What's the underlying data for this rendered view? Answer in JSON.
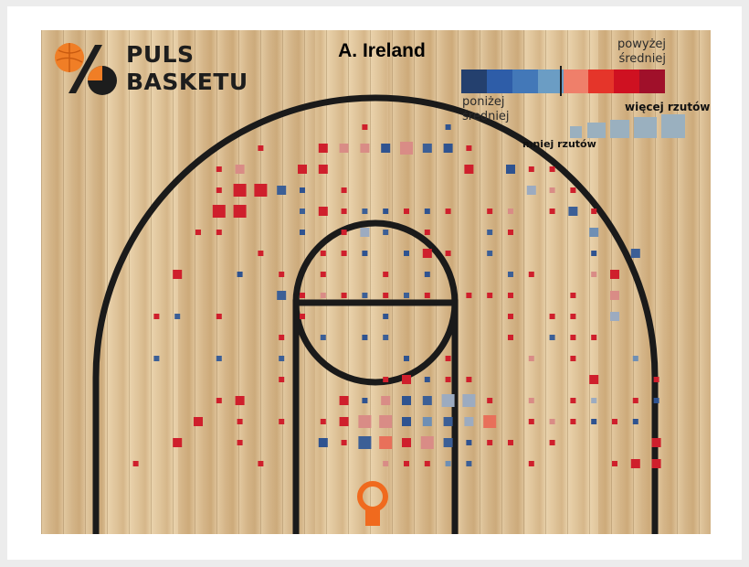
{
  "header": {
    "logo_line1": "PULS",
    "logo_line2": "BASKETU",
    "player_title": "A. Ireland"
  },
  "legend": {
    "above_avg_line1": "powyżej",
    "above_avg_line2": "średniej",
    "below_avg_line1": "poniżej",
    "below_avg_line2": "średniej",
    "more_shots": "więcej rzutów",
    "fewer_shots": "mniej rzutów",
    "color_scale": [
      "#24406e",
      "#2e5da8",
      "#4378b8",
      "#6b9dc4",
      "#ef7f6a",
      "#e5352a",
      "#cf1121",
      "#a0102a"
    ],
    "size_scale_colors": "#9ab0bf"
  },
  "colors": {
    "court_line": "#1a1a1a",
    "rim": "#f06a1e",
    "wood": "#dcbf93"
  },
  "chart_data": {
    "type": "heatmap",
    "title": "A. Ireland",
    "xlabel": "",
    "ylabel": "",
    "grid": false,
    "x_unit": "court grid column (0 = left sideline bin, 27 = right sideline bin)",
    "y_unit": "court grid row (0 = far from basket, 16 = baseline)",
    "value_levels": [
      "-4 = far below average",
      "-1 = slightly below average",
      "+1 = slightly above average",
      "+4 = far above average"
    ],
    "size_levels": "1 = fewest shots, 4 = most shots",
    "points": [
      {
        "x": 13,
        "y": 0,
        "c": 3,
        "s": 1
      },
      {
        "x": 17,
        "y": 0,
        "c": -4,
        "s": 1
      },
      {
        "x": 8,
        "y": 1,
        "c": 3,
        "s": 1
      },
      {
        "x": 11,
        "y": 1,
        "c": 3,
        "s": 2
      },
      {
        "x": 12,
        "y": 1,
        "c": 1,
        "s": 2
      },
      {
        "x": 13,
        "y": 1,
        "c": 1,
        "s": 2
      },
      {
        "x": 14,
        "y": 1,
        "c": -4,
        "s": 2
      },
      {
        "x": 15,
        "y": 1,
        "c": 1,
        "s": 3
      },
      {
        "x": 16,
        "y": 1,
        "c": -3,
        "s": 2
      },
      {
        "x": 17,
        "y": 1,
        "c": -4,
        "s": 2
      },
      {
        "x": 18,
        "y": 1,
        "c": 3,
        "s": 1
      },
      {
        "x": 6,
        "y": 2,
        "c": 3,
        "s": 1
      },
      {
        "x": 7,
        "y": 2,
        "c": 1,
        "s": 2
      },
      {
        "x": 10,
        "y": 2,
        "c": 3,
        "s": 2
      },
      {
        "x": 11,
        "y": 2,
        "c": 3,
        "s": 2
      },
      {
        "x": 18,
        "y": 2,
        "c": 3,
        "s": 2
      },
      {
        "x": 20,
        "y": 2,
        "c": -4,
        "s": 2
      },
      {
        "x": 21,
        "y": 2,
        "c": 3,
        "s": 1
      },
      {
        "x": 22,
        "y": 2,
        "c": 3,
        "s": 1
      },
      {
        "x": 6,
        "y": 3,
        "c": 3,
        "s": 1
      },
      {
        "x": 7,
        "y": 3,
        "c": 3,
        "s": 3
      },
      {
        "x": 8,
        "y": 3,
        "c": 3,
        "s": 3
      },
      {
        "x": 9,
        "y": 3,
        "c": -3,
        "s": 2
      },
      {
        "x": 10,
        "y": 3,
        "c": -4,
        "s": 1
      },
      {
        "x": 12,
        "y": 3,
        "c": 3,
        "s": 1
      },
      {
        "x": 21,
        "y": 3,
        "c": -1,
        "s": 2
      },
      {
        "x": 22,
        "y": 3,
        "c": 1,
        "s": 1
      },
      {
        "x": 23,
        "y": 3,
        "c": 3,
        "s": 1
      },
      {
        "x": 6,
        "y": 4,
        "c": 3,
        "s": 3
      },
      {
        "x": 7,
        "y": 4,
        "c": 3,
        "s": 3
      },
      {
        "x": 10,
        "y": 4,
        "c": -3,
        "s": 1
      },
      {
        "x": 11,
        "y": 4,
        "c": 3,
        "s": 2
      },
      {
        "x": 12,
        "y": 4,
        "c": 3,
        "s": 1
      },
      {
        "x": 13,
        "y": 4,
        "c": -3,
        "s": 1
      },
      {
        "x": 14,
        "y": 4,
        "c": -4,
        "s": 1
      },
      {
        "x": 15,
        "y": 4,
        "c": 3,
        "s": 1
      },
      {
        "x": 16,
        "y": 4,
        "c": -4,
        "s": 1
      },
      {
        "x": 17,
        "y": 4,
        "c": 3,
        "s": 1
      },
      {
        "x": 19,
        "y": 4,
        "c": 3,
        "s": 1
      },
      {
        "x": 20,
        "y": 4,
        "c": 1,
        "s": 1
      },
      {
        "x": 22,
        "y": 4,
        "c": 3,
        "s": 1
      },
      {
        "x": 23,
        "y": 4,
        "c": -3,
        "s": 2
      },
      {
        "x": 24,
        "y": 4,
        "c": 3,
        "s": 1
      },
      {
        "x": 5,
        "y": 5,
        "c": 3,
        "s": 1
      },
      {
        "x": 6,
        "y": 5,
        "c": 3,
        "s": 1
      },
      {
        "x": 10,
        "y": 5,
        "c": -4,
        "s": 1
      },
      {
        "x": 12,
        "y": 5,
        "c": 3,
        "s": 1
      },
      {
        "x": 13,
        "y": 5,
        "c": -1,
        "s": 2
      },
      {
        "x": 14,
        "y": 5,
        "c": -3,
        "s": 1
      },
      {
        "x": 16,
        "y": 5,
        "c": 3,
        "s": 1
      },
      {
        "x": 19,
        "y": 5,
        "c": -3,
        "s": 1
      },
      {
        "x": 20,
        "y": 5,
        "c": 3,
        "s": 1
      },
      {
        "x": 24,
        "y": 5,
        "c": -2,
        "s": 2
      },
      {
        "x": 8,
        "y": 6,
        "c": 3,
        "s": 1
      },
      {
        "x": 11,
        "y": 6,
        "c": 3,
        "s": 1
      },
      {
        "x": 12,
        "y": 6,
        "c": 3,
        "s": 1
      },
      {
        "x": 13,
        "y": 6,
        "c": -4,
        "s": 1
      },
      {
        "x": 15,
        "y": 6,
        "c": -4,
        "s": 1
      },
      {
        "x": 16,
        "y": 6,
        "c": 3,
        "s": 2
      },
      {
        "x": 17,
        "y": 6,
        "c": 3,
        "s": 1
      },
      {
        "x": 19,
        "y": 6,
        "c": -3,
        "s": 1
      },
      {
        "x": 24,
        "y": 6,
        "c": -4,
        "s": 1
      },
      {
        "x": 26,
        "y": 6,
        "c": -3,
        "s": 2
      },
      {
        "x": 4,
        "y": 7,
        "c": 3,
        "s": 2
      },
      {
        "x": 7,
        "y": 7,
        "c": -4,
        "s": 1
      },
      {
        "x": 9,
        "y": 7,
        "c": 3,
        "s": 1
      },
      {
        "x": 11,
        "y": 7,
        "c": 3,
        "s": 1
      },
      {
        "x": 14,
        "y": 7,
        "c": 3,
        "s": 1
      },
      {
        "x": 16,
        "y": 7,
        "c": -4,
        "s": 1
      },
      {
        "x": 20,
        "y": 7,
        "c": -3,
        "s": 1
      },
      {
        "x": 21,
        "y": 7,
        "c": 3,
        "s": 1
      },
      {
        "x": 24,
        "y": 7,
        "c": 1,
        "s": 1
      },
      {
        "x": 25,
        "y": 7,
        "c": 3,
        "s": 2
      },
      {
        "x": 9,
        "y": 8,
        "c": -3,
        "s": 2
      },
      {
        "x": 10,
        "y": 8,
        "c": 3,
        "s": 1
      },
      {
        "x": 11,
        "y": 8,
        "c": 1,
        "s": 1
      },
      {
        "x": 12,
        "y": 8,
        "c": 3,
        "s": 1
      },
      {
        "x": 13,
        "y": 8,
        "c": -3,
        "s": 1
      },
      {
        "x": 14,
        "y": 8,
        "c": 3,
        "s": 1
      },
      {
        "x": 15,
        "y": 8,
        "c": -3,
        "s": 1
      },
      {
        "x": 16,
        "y": 8,
        "c": 3,
        "s": 1
      },
      {
        "x": 18,
        "y": 8,
        "c": 3,
        "s": 1
      },
      {
        "x": 19,
        "y": 8,
        "c": 3,
        "s": 1
      },
      {
        "x": 20,
        "y": 8,
        "c": 3,
        "s": 1
      },
      {
        "x": 23,
        "y": 8,
        "c": 3,
        "s": 1
      },
      {
        "x": 25,
        "y": 8,
        "c": 1,
        "s": 2
      },
      {
        "x": 3,
        "y": 9,
        "c": 3,
        "s": 1
      },
      {
        "x": 4,
        "y": 9,
        "c": -3,
        "s": 1
      },
      {
        "x": 6,
        "y": 9,
        "c": 3,
        "s": 1
      },
      {
        "x": 10,
        "y": 9,
        "c": 3,
        "s": 1
      },
      {
        "x": 14,
        "y": 9,
        "c": -4,
        "s": 1
      },
      {
        "x": 20,
        "y": 9,
        "c": 3,
        "s": 1
      },
      {
        "x": 22,
        "y": 9,
        "c": 3,
        "s": 1
      },
      {
        "x": 23,
        "y": 9,
        "c": 3,
        "s": 1
      },
      {
        "x": 25,
        "y": 9,
        "c": -1,
        "s": 2
      },
      {
        "x": 9,
        "y": 10,
        "c": 3,
        "s": 1
      },
      {
        "x": 11,
        "y": 10,
        "c": -3,
        "s": 1
      },
      {
        "x": 13,
        "y": 10,
        "c": -4,
        "s": 1
      },
      {
        "x": 14,
        "y": 10,
        "c": -3,
        "s": 1
      },
      {
        "x": 20,
        "y": 10,
        "c": 3,
        "s": 1
      },
      {
        "x": 22,
        "y": 10,
        "c": -3,
        "s": 1
      },
      {
        "x": 23,
        "y": 10,
        "c": 3,
        "s": 1
      },
      {
        "x": 24,
        "y": 10,
        "c": 3,
        "s": 1
      },
      {
        "x": 3,
        "y": 11,
        "c": -3,
        "s": 1
      },
      {
        "x": 6,
        "y": 11,
        "c": -3,
        "s": 1
      },
      {
        "x": 9,
        "y": 11,
        "c": -3,
        "s": 1
      },
      {
        "x": 15,
        "y": 11,
        "c": -4,
        "s": 1
      },
      {
        "x": 17,
        "y": 11,
        "c": 3,
        "s": 1
      },
      {
        "x": 21,
        "y": 11,
        "c": 1,
        "s": 1
      },
      {
        "x": 23,
        "y": 11,
        "c": 3,
        "s": 1
      },
      {
        "x": 26,
        "y": 11,
        "c": -2,
        "s": 1
      },
      {
        "x": 9,
        "y": 12,
        "c": 3,
        "s": 1
      },
      {
        "x": 14,
        "y": 12,
        "c": 3,
        "s": 1
      },
      {
        "x": 15,
        "y": 12,
        "c": 3,
        "s": 2
      },
      {
        "x": 16,
        "y": 12,
        "c": -4,
        "s": 1
      },
      {
        "x": 17,
        "y": 12,
        "c": 3,
        "s": 1
      },
      {
        "x": 18,
        "y": 12,
        "c": 3,
        "s": 1
      },
      {
        "x": 24,
        "y": 12,
        "c": 3,
        "s": 2
      },
      {
        "x": 27,
        "y": 12,
        "c": 3,
        "s": 1
      },
      {
        "x": 6,
        "y": 13,
        "c": 3,
        "s": 1
      },
      {
        "x": 7,
        "y": 13,
        "c": 3,
        "s": 2
      },
      {
        "x": 12,
        "y": 13,
        "c": 3,
        "s": 2
      },
      {
        "x": 13,
        "y": 13,
        "c": -4,
        "s": 1
      },
      {
        "x": 14,
        "y": 13,
        "c": 1,
        "s": 2
      },
      {
        "x": 15,
        "y": 13,
        "c": -4,
        "s": 2
      },
      {
        "x": 16,
        "y": 13,
        "c": -3,
        "s": 2
      },
      {
        "x": 17,
        "y": 13,
        "c": -1,
        "s": 3
      },
      {
        "x": 18,
        "y": 13,
        "c": -1,
        "s": 3
      },
      {
        "x": 19,
        "y": 13,
        "c": 3,
        "s": 1
      },
      {
        "x": 21,
        "y": 13,
        "c": 1,
        "s": 1
      },
      {
        "x": 23,
        "y": 13,
        "c": 3,
        "s": 1
      },
      {
        "x": 24,
        "y": 13,
        "c": -1,
        "s": 1
      },
      {
        "x": 26,
        "y": 13,
        "c": 3,
        "s": 1
      },
      {
        "x": 27,
        "y": 13,
        "c": -4,
        "s": 1
      },
      {
        "x": 5,
        "y": 14,
        "c": 3,
        "s": 2
      },
      {
        "x": 7,
        "y": 14,
        "c": 3,
        "s": 1
      },
      {
        "x": 9,
        "y": 14,
        "c": 3,
        "s": 1
      },
      {
        "x": 11,
        "y": 14,
        "c": 3,
        "s": 1
      },
      {
        "x": 12,
        "y": 14,
        "c": 3,
        "s": 2
      },
      {
        "x": 13,
        "y": 14,
        "c": 1,
        "s": 3
      },
      {
        "x": 14,
        "y": 14,
        "c": 1,
        "s": 3
      },
      {
        "x": 15,
        "y": 14,
        "c": -4,
        "s": 2
      },
      {
        "x": 16,
        "y": 14,
        "c": -2,
        "s": 2
      },
      {
        "x": 17,
        "y": 14,
        "c": -3,
        "s": 2
      },
      {
        "x": 18,
        "y": 14,
        "c": -1,
        "s": 2
      },
      {
        "x": 19,
        "y": 14,
        "c": 2,
        "s": 3
      },
      {
        "x": 21,
        "y": 14,
        "c": 3,
        "s": 1
      },
      {
        "x": 22,
        "y": 14,
        "c": 1,
        "s": 1
      },
      {
        "x": 23,
        "y": 14,
        "c": 3,
        "s": 1
      },
      {
        "x": 24,
        "y": 14,
        "c": -4,
        "s": 1
      },
      {
        "x": 25,
        "y": 14,
        "c": 3,
        "s": 1
      },
      {
        "x": 26,
        "y": 14,
        "c": -4,
        "s": 1
      },
      {
        "x": 4,
        "y": 15,
        "c": 3,
        "s": 2
      },
      {
        "x": 7,
        "y": 15,
        "c": 3,
        "s": 1
      },
      {
        "x": 11,
        "y": 15,
        "c": -4,
        "s": 2
      },
      {
        "x": 12,
        "y": 15,
        "c": 3,
        "s": 1
      },
      {
        "x": 13,
        "y": 15,
        "c": -3,
        "s": 3
      },
      {
        "x": 14,
        "y": 15,
        "c": 2,
        "s": 3
      },
      {
        "x": 15,
        "y": 15,
        "c": 3,
        "s": 2
      },
      {
        "x": 16,
        "y": 15,
        "c": 1,
        "s": 3
      },
      {
        "x": 17,
        "y": 15,
        "c": -3,
        "s": 2
      },
      {
        "x": 18,
        "y": 15,
        "c": -4,
        "s": 1
      },
      {
        "x": 19,
        "y": 15,
        "c": 3,
        "s": 1
      },
      {
        "x": 20,
        "y": 15,
        "c": 3,
        "s": 1
      },
      {
        "x": 22,
        "y": 15,
        "c": 3,
        "s": 1
      },
      {
        "x": 27,
        "y": 15,
        "c": 3,
        "s": 2
      },
      {
        "x": 2,
        "y": 16,
        "c": 3,
        "s": 1
      },
      {
        "x": 8,
        "y": 16,
        "c": 3,
        "s": 1
      },
      {
        "x": 14,
        "y": 16,
        "c": 1,
        "s": 1
      },
      {
        "x": 15,
        "y": 16,
        "c": 3,
        "s": 1
      },
      {
        "x": 16,
        "y": 16,
        "c": 3,
        "s": 1
      },
      {
        "x": 17,
        "y": 16,
        "c": -2,
        "s": 1
      },
      {
        "x": 18,
        "y": 16,
        "c": -3,
        "s": 1
      },
      {
        "x": 21,
        "y": 16,
        "c": 3,
        "s": 1
      },
      {
        "x": 25,
        "y": 16,
        "c": 3,
        "s": 1
      },
      {
        "x": 26,
        "y": 16,
        "c": 3,
        "s": 2
      },
      {
        "x": 27,
        "y": 16,
        "c": 3,
        "s": 2
      }
    ]
  }
}
